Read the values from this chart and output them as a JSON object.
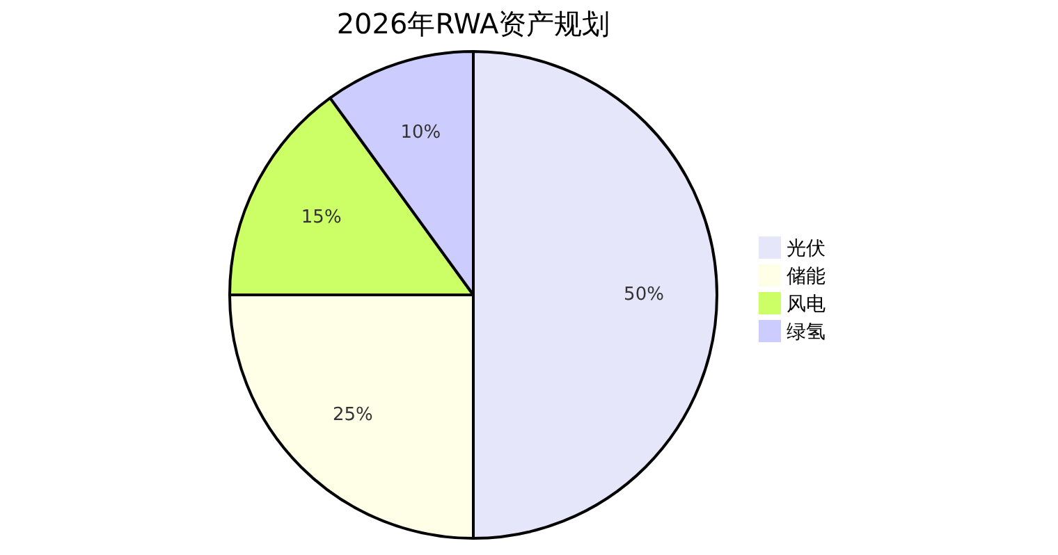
{
  "chart_data": {
    "type": "pie",
    "title": "2026年RWA资产规划",
    "categories": [
      "光伏",
      "储能",
      "风电",
      "绿氢"
    ],
    "values": [
      50,
      25,
      15,
      10
    ],
    "colors": [
      "#e6e6fa",
      "#ffffe8",
      "#ccff66",
      "#ccccff"
    ],
    "value_labels": [
      "50%",
      "25%",
      "15%",
      "10%"
    ],
    "legend": "right"
  }
}
